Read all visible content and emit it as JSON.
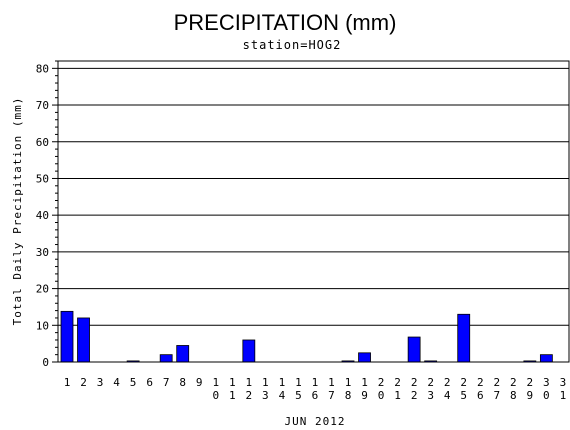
{
  "chart_data": {
    "type": "bar",
    "title": "PRECIPITATION (mm)",
    "subtitle": "station=HOG2",
    "xlabel": "JUN 2012",
    "ylabel": "Total Daily Precipitation (mm)",
    "ylim": [
      0,
      82
    ],
    "yticks": [
      0,
      10,
      20,
      30,
      40,
      50,
      60,
      70,
      80
    ],
    "grid": true,
    "bar_color": "#0000ff",
    "categories": [
      "1",
      "2",
      "3",
      "4",
      "5",
      "6",
      "7",
      "8",
      "9",
      "10",
      "11",
      "12",
      "13",
      "14",
      "15",
      "16",
      "17",
      "18",
      "19",
      "20",
      "21",
      "22",
      "23",
      "24",
      "25",
      "26",
      "27",
      "28",
      "29",
      "30",
      "31"
    ],
    "values": [
      13.8,
      12,
      0,
      0,
      0.3,
      0,
      2,
      4.5,
      0,
      0,
      0,
      6,
      0,
      0,
      0,
      0,
      0,
      0.3,
      2.5,
      0,
      0,
      6.8,
      0.3,
      0,
      13,
      0,
      0,
      0,
      0.3,
      2,
      0
    ]
  }
}
